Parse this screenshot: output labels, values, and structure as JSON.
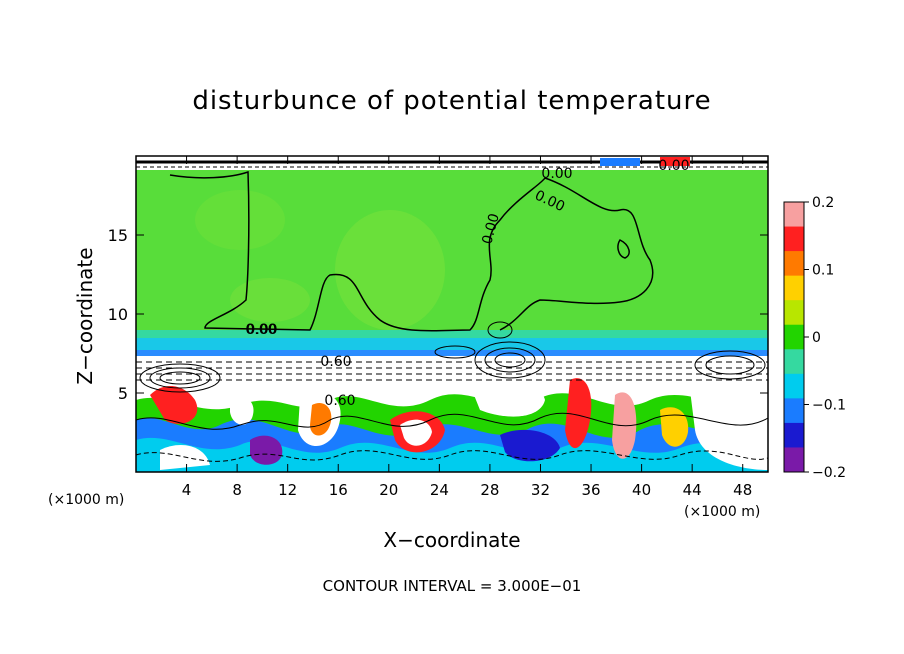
{
  "chart_data": {
    "type": "heatmap",
    "title": "disturbunce of potential temperature",
    "xlabel": "X−coordinate",
    "ylabel": "Z−coordinate",
    "xunit_left": "(×1000 m)",
    "xunit_right": "(×1000 m)",
    "xlim": [
      0,
      50
    ],
    "ylim": [
      0,
      20
    ],
    "xticks": [
      "4",
      "8",
      "12",
      "16",
      "20",
      "24",
      "28",
      "32",
      "36",
      "40",
      "44",
      "48"
    ],
    "xtick_values": [
      4,
      8,
      12,
      16,
      20,
      24,
      28,
      32,
      36,
      40,
      44,
      48
    ],
    "yticks": [
      "5",
      "10",
      "15"
    ],
    "ytick_values": [
      5,
      10,
      15
    ],
    "colorbar": {
      "range": [
        -0.2,
        0.2
      ],
      "ticks": [
        "0.2",
        "0.1",
        "0",
        "−0.1",
        "−0.2"
      ],
      "tick_values": [
        0.2,
        0.1,
        0,
        -0.1,
        -0.2
      ],
      "colors": [
        "#f7a0a0",
        "#ff2020",
        "#ff7a00",
        "#ffd000",
        "#b8e600",
        "#22d400",
        "#35d9a0",
        "#00ccee",
        "#1a7cff",
        "#1a1ad0",
        "#7a1aa8"
      ]
    },
    "contour_labels": [
      "0.00",
      "0.00",
      "0.00",
      "0.00",
      "0.00",
      "0.60",
      "0.60",
      "0.00"
    ],
    "contour_interval_text": "CONTOUR INTERVAL = 3.000E−01",
    "fields": {
      "upper_layer": {
        "z_range": [
          8.5,
          19.5
        ],
        "value": 0.02
      },
      "transition_band": {
        "z_range": [
          7.2,
          8.5
        ],
        "value": -0.08
      },
      "turbulent_layer": {
        "z_range": [
          0,
          7.2
        ],
        "value_range": [
          -0.2,
          0.2
        ]
      }
    }
  }
}
